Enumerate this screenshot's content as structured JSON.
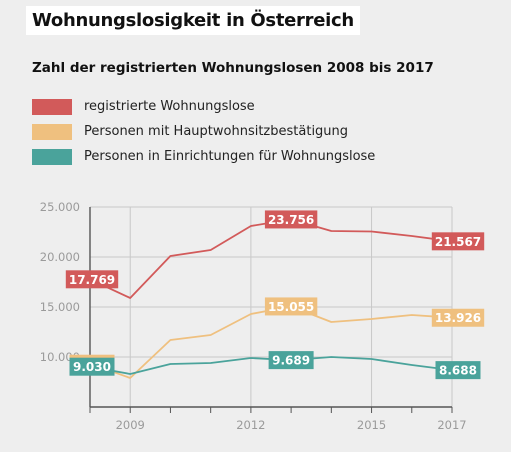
{
  "header": {
    "title": "Wohnungslosigkeit in Österreich"
  },
  "chart_data": {
    "type": "line",
    "title": "Wohnungslosigkeit in Österreich",
    "subtitle": "Zahl der registrierten Wohnungslosen 2008 bis 2017",
    "xlabel": "",
    "ylabel": "",
    "x": [
      2008,
      2009,
      2010,
      2011,
      2012,
      2013,
      2014,
      2015,
      2016,
      2017
    ],
    "xticks": [
      {
        "value": 2009,
        "label": "2009"
      },
      {
        "value": 2012,
        "label": "2012"
      },
      {
        "value": 2015,
        "label": "2015"
      },
      {
        "value": 2017,
        "label": "2017"
      }
    ],
    "yticks": [
      {
        "value": 10000,
        "label": "10.000"
      },
      {
        "value": 15000,
        "label": "15.000"
      },
      {
        "value": 20000,
        "label": "20.000"
      },
      {
        "value": 25000,
        "label": "25.000"
      }
    ],
    "xlim": [
      2008,
      2017
    ],
    "ylim": [
      5000,
      25000
    ],
    "grid": true,
    "legend_position": "top-left",
    "series": [
      {
        "name": "registrierte Wohnungslose",
        "color": "#d25a5a",
        "values": [
          17769,
          15900,
          20100,
          20700,
          23100,
          23756,
          22600,
          22550,
          22100,
          21567
        ],
        "labels": [
          {
            "index": 0,
            "text": "17.769"
          },
          {
            "index": 5,
            "text": "23.756"
          },
          {
            "index": 9,
            "text": "21.567"
          }
        ]
      },
      {
        "name": "Personen mit Hauptwohnsitzbestätigung",
        "color": "#efc07f",
        "values": [
          9329,
          7900,
          11700,
          12200,
          14300,
          15055,
          13500,
          13800,
          14200,
          13926
        ],
        "labels": [
          {
            "index": 0,
            "text": "9.329"
          },
          {
            "index": 5,
            "text": "15.055"
          },
          {
            "index": 9,
            "text": "13.926"
          }
        ]
      },
      {
        "name": "Personen in Einrichtungen für Wohnungslose",
        "color": "#4aa39b",
        "values": [
          9030,
          8300,
          9300,
          9400,
          9900,
          9689,
          10000,
          9800,
          9200,
          8688
        ],
        "labels": [
          {
            "index": 0,
            "text": "9.030"
          },
          {
            "index": 5,
            "text": "9.689"
          },
          {
            "index": 9,
            "text": "8.688"
          }
        ]
      }
    ]
  }
}
